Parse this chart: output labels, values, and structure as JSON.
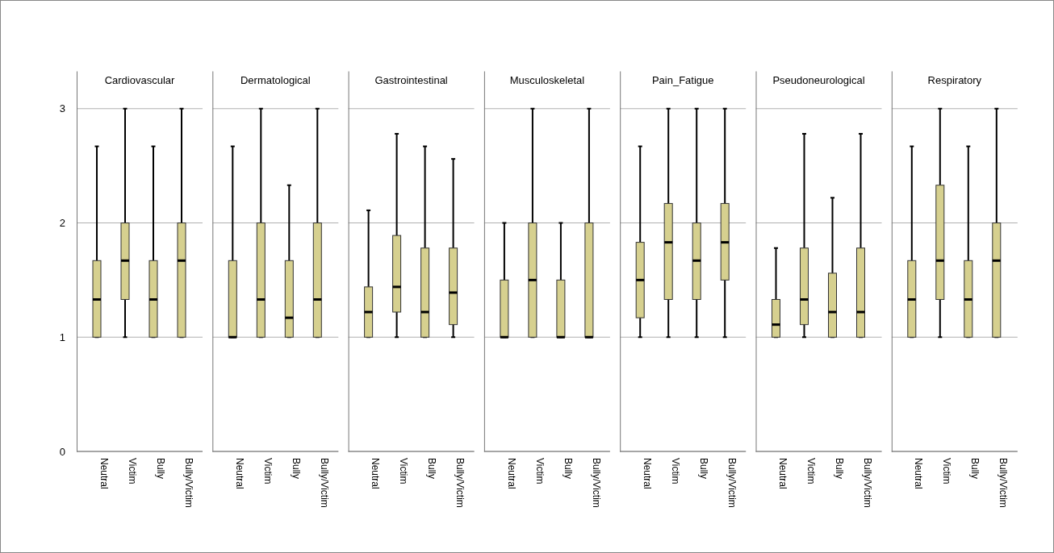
{
  "chart_data": [
    {
      "type": "box",
      "title": "Cardiovascular",
      "categories": [
        "Neutral",
        "Victim",
        "Bully",
        "Bully/Victim"
      ],
      "ylim": [
        0,
        3.33
      ],
      "yticks": [
        0,
        1,
        2,
        3
      ],
      "grid": "y",
      "series": [
        {
          "color": "#d6d08f",
          "boxes": [
            {
              "low": 1,
              "q1": 1,
              "median": 1.33,
              "q3": 1.67,
              "high": 2.67
            },
            {
              "low": 1,
              "q1": 1.33,
              "median": 1.67,
              "q3": 2,
              "high": 3
            },
            {
              "low": 1,
              "q1": 1,
              "median": 1.33,
              "q3": 1.67,
              "high": 2.67
            },
            {
              "low": 1,
              "q1": 1,
              "median": 1.67,
              "q3": 2,
              "high": 3
            }
          ]
        }
      ]
    },
    {
      "type": "box",
      "title": "Dermatological",
      "categories": [
        "Neutral",
        "Victim",
        "Bully",
        "Bully/Victim"
      ],
      "ylim": [
        0,
        3.33
      ],
      "yticks": [
        0,
        1,
        2,
        3
      ],
      "grid": "y",
      "tick_labels": "x",
      "series": [
        {
          "color": "#d6d08f",
          "boxes": [
            {
              "low": 1,
              "q1": 1,
              "median": 1,
              "q3": 1.67,
              "high": 2.67
            },
            {
              "low": 1,
              "q1": 1,
              "median": 1.33,
              "q3": 2,
              "high": 3
            },
            {
              "low": 1,
              "q1": 1,
              "median": 1.17,
              "q3": 1.67,
              "high": 2.33
            },
            {
              "low": 1,
              "q1": 1,
              "median": 1.33,
              "q3": 2,
              "high": 3
            }
          ]
        }
      ]
    },
    {
      "type": "box",
      "title": "Gastrointestinal",
      "categories": [
        "Neutral",
        "Victim",
        "Bully",
        "Bully/Victim"
      ],
      "ylim": [
        0,
        3.33
      ],
      "yticks": [
        0,
        1,
        2,
        3
      ],
      "grid": "y",
      "tick_labels": "x",
      "series": [
        {
          "color": "#d6d08f",
          "boxes": [
            {
              "low": 1,
              "q1": 1,
              "median": 1.22,
              "q3": 1.44,
              "high": 2.11
            },
            {
              "low": 1,
              "q1": 1.22,
              "median": 1.44,
              "q3": 1.89,
              "high": 2.78
            },
            {
              "low": 1,
              "q1": 1,
              "median": 1.22,
              "q3": 1.78,
              "high": 2.67
            },
            {
              "low": 1,
              "q1": 1.11,
              "median": 1.39,
              "q3": 1.78,
              "high": 2.56
            }
          ]
        }
      ]
    },
    {
      "type": "box",
      "title": "Musculoskeletal",
      "categories": [
        "Neutral",
        "Victim",
        "Bully",
        "Bully/Victim"
      ],
      "ylim": [
        0,
        3.33
      ],
      "yticks": [
        0,
        1,
        2,
        3
      ],
      "grid": "y",
      "tick_labels": "x",
      "series": [
        {
          "color": "#d6d08f",
          "boxes": [
            {
              "low": 1,
              "q1": 1,
              "median": 1,
              "q3": 1.5,
              "high": 2
            },
            {
              "low": 1,
              "q1": 1,
              "median": 1.5,
              "q3": 2,
              "high": 3
            },
            {
              "low": 1,
              "q1": 1,
              "median": 1,
              "q3": 1.5,
              "high": 2
            },
            {
              "low": 1,
              "q1": 1,
              "median": 1,
              "q3": 2,
              "high": 3
            }
          ]
        }
      ]
    },
    {
      "type": "box",
      "title": "Pain_Fatigue",
      "categories": [
        "Neutral",
        "Victim",
        "Bully",
        "Bully/Victim"
      ],
      "ylim": [
        0,
        3.33
      ],
      "yticks": [
        0,
        1,
        2,
        3
      ],
      "grid": "y",
      "tick_labels": "x",
      "series": [
        {
          "color": "#d6d08f",
          "boxes": [
            {
              "low": 1,
              "q1": 1.17,
              "median": 1.5,
              "q3": 1.83,
              "high": 2.67
            },
            {
              "low": 1,
              "q1": 1.33,
              "median": 1.83,
              "q3": 2.17,
              "high": 3
            },
            {
              "low": 1,
              "q1": 1.33,
              "median": 1.67,
              "q3": 2,
              "high": 3
            },
            {
              "low": 1,
              "q1": 1.5,
              "median": 1.83,
              "q3": 2.17,
              "high": 3
            }
          ]
        }
      ]
    },
    {
      "type": "box",
      "title": "Pseudoneurological",
      "categories": [
        "Neutral",
        "Victim",
        "Bully",
        "Bully/Victim"
      ],
      "ylim": [
        0,
        3.33
      ],
      "yticks": [
        0,
        1,
        2,
        3
      ],
      "grid": "y",
      "tick_labels": "x",
      "series": [
        {
          "color": "#d6d08f",
          "boxes": [
            {
              "low": 1,
              "q1": 1,
              "median": 1.11,
              "q3": 1.33,
              "high": 1.78
            },
            {
              "low": 1,
              "q1": 1.11,
              "median": 1.33,
              "q3": 1.78,
              "high": 2.78
            },
            {
              "low": 1,
              "q1": 1,
              "median": 1.22,
              "q3": 1.56,
              "high": 2.22
            },
            {
              "low": 1,
              "q1": 1,
              "median": 1.22,
              "q3": 1.78,
              "high": 2.78
            }
          ]
        }
      ]
    },
    {
      "type": "box",
      "title": "Respiratory",
      "categories": [
        "Neutral",
        "Victim",
        "Bully",
        "Bully/Victim"
      ],
      "ylim": [
        0,
        3.33
      ],
      "yticks": [
        0,
        1,
        2,
        3
      ],
      "grid": "y",
      "tick_labels": "x",
      "series": [
        {
          "color": "#d6d08f",
          "boxes": [
            {
              "low": 1,
              "q1": 1,
              "median": 1.33,
              "q3": 1.67,
              "high": 2.67
            },
            {
              "low": 1,
              "q1": 1.33,
              "median": 1.67,
              "q3": 2.33,
              "high": 3
            },
            {
              "low": 1,
              "q1": 1,
              "median": 1.33,
              "q3": 1.67,
              "high": 2.67
            },
            {
              "low": 1,
              "q1": 1,
              "median": 1.67,
              "q3": 2,
              "high": 3
            }
          ]
        }
      ]
    }
  ]
}
